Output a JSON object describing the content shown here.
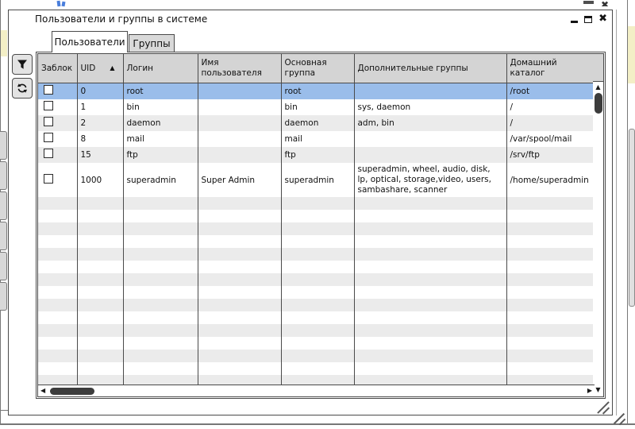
{
  "window": {
    "title": "Пользователи и группы в системе",
    "controls": {
      "close_glyph": "✖"
    }
  },
  "background_window": {
    "partial_close_glyph": "✖"
  },
  "tabs": [
    {
      "id": "users",
      "label": "Пользователи",
      "active": true
    },
    {
      "id": "groups",
      "label": "Группы",
      "active": false
    }
  ],
  "toolbar": {
    "filter_icon": "filter-funnel",
    "refresh_icon": "refresh-arrows"
  },
  "table": {
    "columns": [
      {
        "key": "blocked",
        "label": "Заблок"
      },
      {
        "key": "uid",
        "label": "UID",
        "sorted": "asc"
      },
      {
        "key": "login",
        "label": "Логин"
      },
      {
        "key": "name",
        "label": "Имя пользователя"
      },
      {
        "key": "group",
        "label": "Основная группа"
      },
      {
        "key": "extra",
        "label": "Дополнительные группы"
      },
      {
        "key": "home",
        "label": "Домашний каталог"
      }
    ],
    "sort_arrow": "▲",
    "rows": [
      {
        "blocked": false,
        "uid": "0",
        "login": "root",
        "name": "",
        "group": "root",
        "extra": "",
        "home": "/root",
        "selected": true
      },
      {
        "blocked": false,
        "uid": "1",
        "login": "bin",
        "name": "",
        "group": "bin",
        "extra": "sys, daemon",
        "home": "/",
        "selected": false
      },
      {
        "blocked": false,
        "uid": "2",
        "login": "daemon",
        "name": "",
        "group": "daemon",
        "extra": "adm, bin",
        "home": "/",
        "selected": false
      },
      {
        "blocked": false,
        "uid": "8",
        "login": "mail",
        "name": "",
        "group": "mail",
        "extra": "",
        "home": "/var/spool/mail",
        "selected": false
      },
      {
        "blocked": false,
        "uid": "15",
        "login": "ftp",
        "name": "",
        "group": "ftp",
        "extra": "",
        "home": "/srv/ftp",
        "selected": false
      },
      {
        "blocked": false,
        "uid": "1000",
        "login": "superadmin",
        "name": "Super Admin",
        "group": "superadmin",
        "extra": "superadmin, wheel, audio, disk, lp, optical, storage,video, users, sambashare, scanner",
        "home": "/home/superadmin",
        "selected": false
      }
    ]
  },
  "scrollbars": {
    "up": "▲",
    "down": "▼",
    "left": "◀",
    "right": "▶"
  },
  "colors": {
    "selection": "#9abdea",
    "header_bg": "#d4d4d4",
    "row_alt": "#ebebeb",
    "accent_yellow": "#f3efc6"
  }
}
